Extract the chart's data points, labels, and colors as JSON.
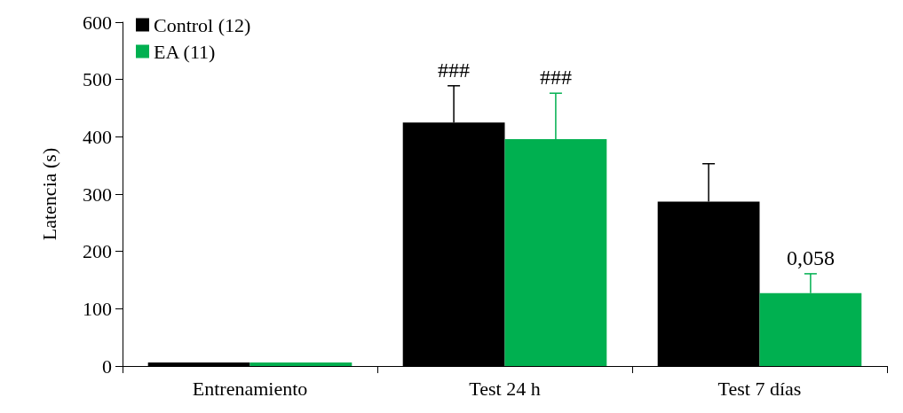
{
  "chart_data": {
    "type": "bar",
    "ylabel": "Latencia (s)",
    "categories": [
      "Entrenamiento",
      "Test 24 h",
      "Test 7 días"
    ],
    "series": [
      {
        "name": "Control (12)",
        "color": "#000000",
        "values": [
          6,
          425,
          287
        ],
        "errors": [
          null,
          [
            425,
            489
          ],
          [
            287,
            353
          ]
        ]
      },
      {
        "name": "EA (11)",
        "color": "#00b050",
        "values": [
          6,
          396,
          127
        ],
        "errors": [
          null,
          [
            396,
            476
          ],
          [
            127,
            161
          ]
        ]
      }
    ],
    "ylim": [
      0,
      600
    ],
    "yticks": [
      0,
      100,
      200,
      300,
      400,
      500,
      600
    ],
    "grid": false,
    "legend": "top left",
    "annotations": [
      {
        "text": "###",
        "x": "Test 24 h",
        "y": 425
      },
      {
        "text": "###",
        "x": "Test 24 h",
        "y": 396
      },
      {
        "text": "0,058",
        "x": "Test 7 días",
        "y": 127
      }
    ]
  }
}
